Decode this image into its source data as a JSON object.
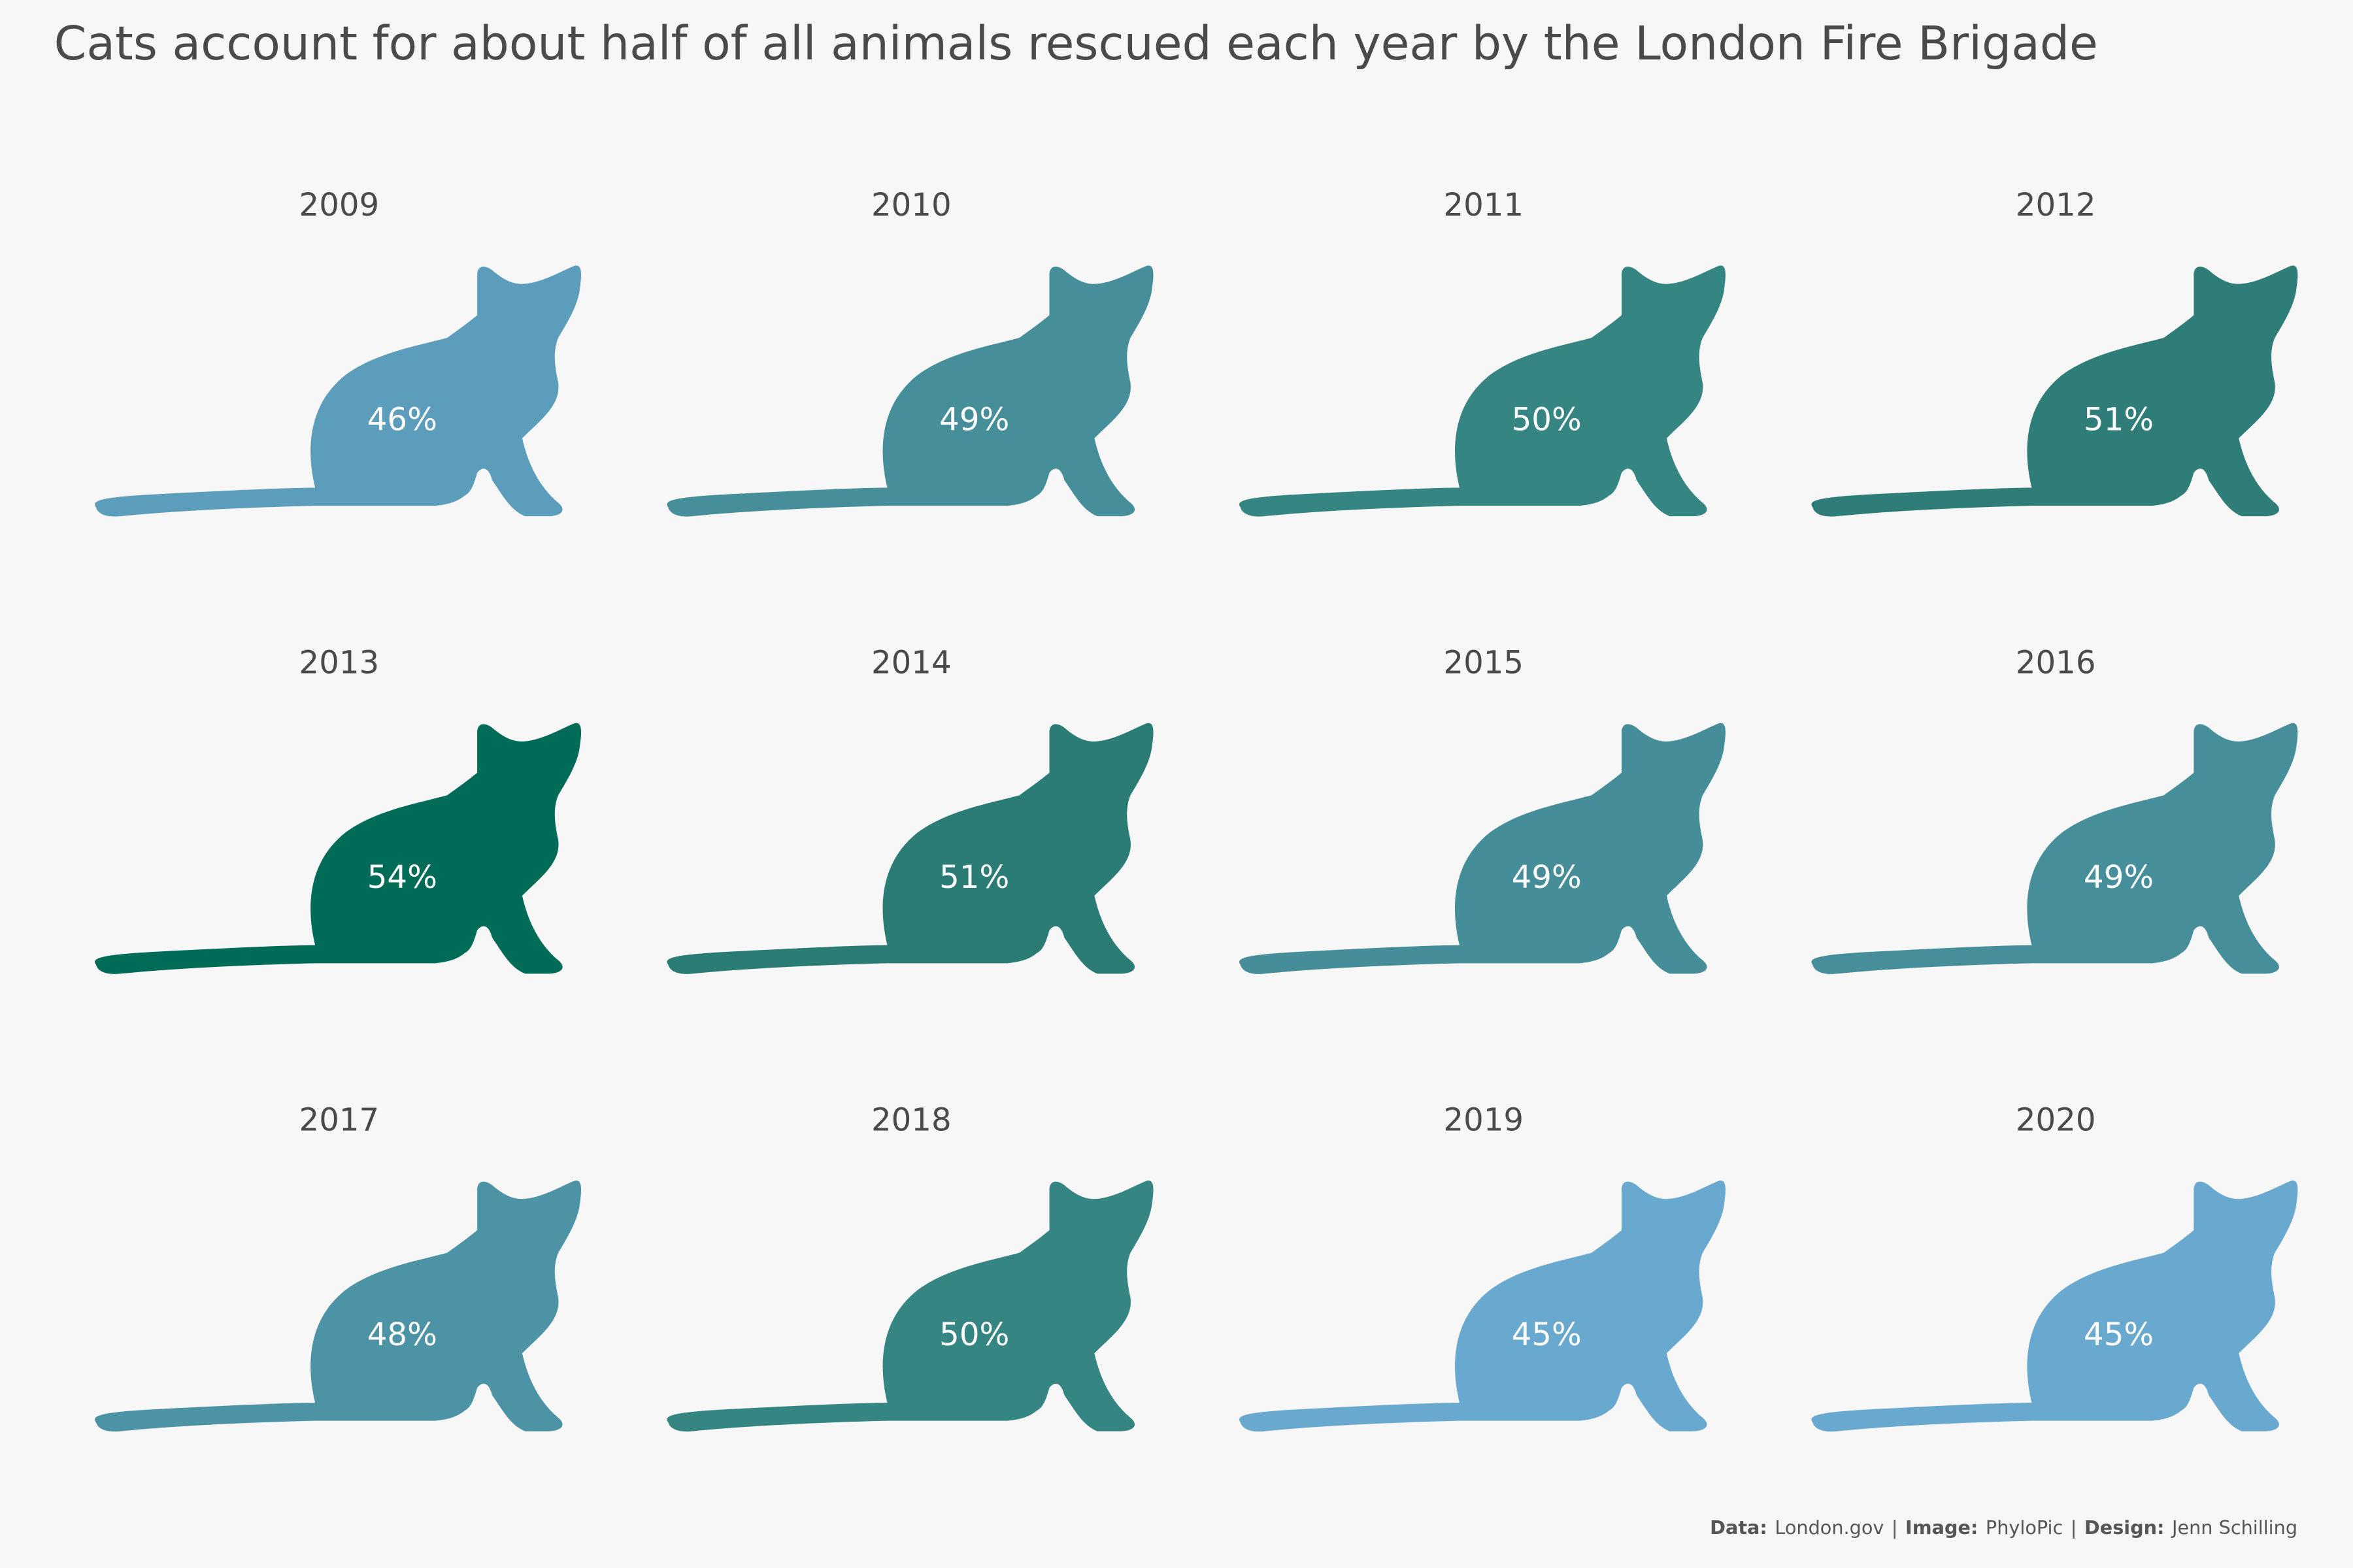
{
  "chart_data": {
    "type": "pictogram",
    "title": "Cats account for about half of all animals rescued each year by the London Fire Brigade",
    "categories": [
      "2009",
      "2010",
      "2011",
      "2012",
      "2013",
      "2014",
      "2015",
      "2016",
      "2017",
      "2018",
      "2019",
      "2020"
    ],
    "values": [
      46,
      49,
      50,
      51,
      54,
      51,
      49,
      49,
      48,
      50,
      45,
      45
    ],
    "value_labels": [
      "46%",
      "49%",
      "50%",
      "51%",
      "54%",
      "51%",
      "49%",
      "49%",
      "48%",
      "50%",
      "45%",
      "45%"
    ],
    "colors": [
      "#5b9dba",
      "#468e9a",
      "#358582",
      "#2e7d78",
      "#006b57",
      "#2a7c75",
      "#458d98",
      "#468e9a",
      "#4b93a5",
      "#358582",
      "#69a9cf",
      "#69a9cf"
    ],
    "caption": [
      {
        "text": "Data:",
        "bold": true
      },
      {
        "text": "London.gov"
      },
      {
        "text": "|"
      },
      {
        "text": "Image:",
        "bold": true
      },
      {
        "text": "PhyloPic"
      },
      {
        "text": "|"
      },
      {
        "text": "Design:",
        "bold": true
      },
      {
        "text": "Jenn Schilling"
      }
    ]
  }
}
